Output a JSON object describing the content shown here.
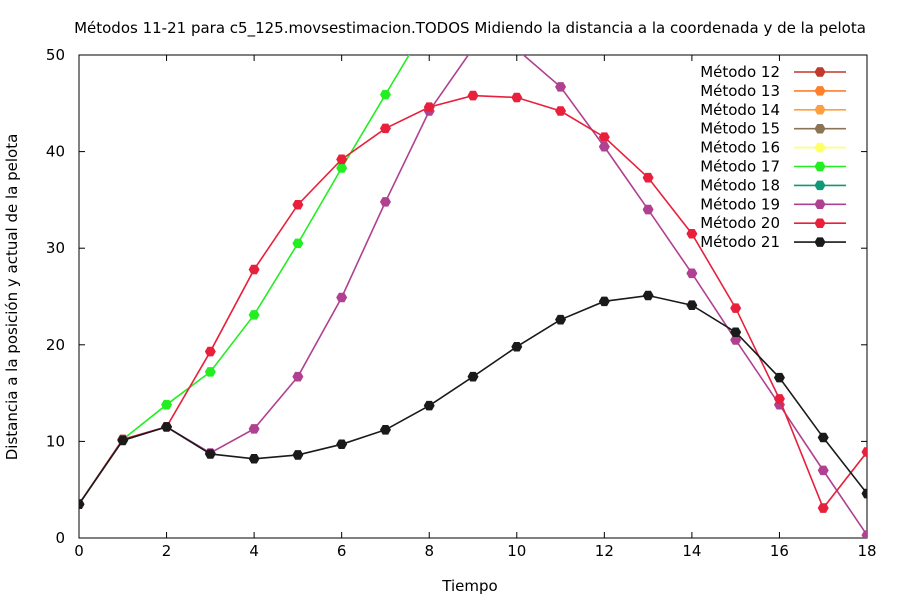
{
  "chart_data": {
    "type": "line",
    "title": "Métodos 11-21 para c5_125.movsestimacion.TODOS Midiendo la distancia a la coordenada y de la pelota",
    "xlabel": "Tiempo",
    "ylabel": "Distancia a la posición y actual de la pelota",
    "xlim": [
      0,
      18
    ],
    "ylim": [
      0,
      50
    ],
    "x_ticks": [
      "0",
      "2",
      "4",
      "6",
      "8",
      "10",
      "12",
      "14",
      "16",
      "18"
    ],
    "y_ticks": [
      "0",
      "10",
      "20",
      "30",
      "40",
      "50"
    ],
    "grid": false,
    "legend_position": "top-right",
    "series": [
      {
        "name": "Método 12",
        "color": "#c0392b",
        "x": [],
        "y": []
      },
      {
        "name": "Método 13",
        "color": "#ff7f2a",
        "x": [],
        "y": []
      },
      {
        "name": "Método 14",
        "color": "#ffa040",
        "x": [],
        "y": []
      },
      {
        "name": "Método 15",
        "color": "#8b7355",
        "x": [],
        "y": []
      },
      {
        "name": "Método 16",
        "color": "#ffff66",
        "x": [],
        "y": []
      },
      {
        "name": "Método 17",
        "color": "#22ee22",
        "x": [
          0,
          1,
          2,
          3,
          4,
          5,
          6,
          7,
          8
        ],
        "y": [
          3.5,
          10.2,
          13.8,
          17.2,
          23.1,
          30.5,
          38.3,
          45.9,
          53.5
        ]
      },
      {
        "name": "Método 18",
        "color": "#119977",
        "x": [],
        "y": []
      },
      {
        "name": "Método 19",
        "color": "#b04090",
        "x": [
          0,
          1,
          2,
          3,
          4,
          5,
          6,
          7,
          8,
          9,
          10,
          11,
          12,
          13,
          14,
          15,
          16,
          17,
          18
        ],
        "y": [
          3.5,
          10.2,
          11.5,
          8.8,
          11.3,
          16.7,
          24.9,
          34.8,
          44.2,
          50.7,
          50.6,
          46.7,
          40.5,
          34.0,
          27.4,
          20.5,
          13.8,
          7.0,
          0.3
        ]
      },
      {
        "name": "Método 20",
        "color": "#e8203c",
        "x": [
          0,
          1,
          2,
          3,
          4,
          5,
          6,
          7,
          8,
          9,
          10,
          11,
          12,
          13,
          14,
          15,
          16,
          17,
          18
        ],
        "y": [
          3.5,
          10.2,
          11.5,
          19.3,
          27.8,
          34.5,
          39.2,
          42.4,
          44.6,
          45.8,
          45.6,
          44.2,
          41.5,
          37.3,
          31.5,
          23.8,
          14.4,
          3.1,
          8.9
        ]
      },
      {
        "name": "Método 21",
        "color": "#1a1a1a",
        "x": [
          0,
          1,
          2,
          3,
          4,
          5,
          6,
          7,
          8,
          9,
          10,
          11,
          12,
          13,
          14,
          15,
          16,
          17,
          18
        ],
        "y": [
          3.5,
          10.1,
          11.5,
          8.7,
          8.2,
          8.6,
          9.7,
          11.2,
          13.7,
          16.7,
          19.8,
          22.6,
          24.5,
          25.1,
          24.1,
          21.3,
          16.6,
          10.4,
          4.6
        ]
      }
    ]
  }
}
